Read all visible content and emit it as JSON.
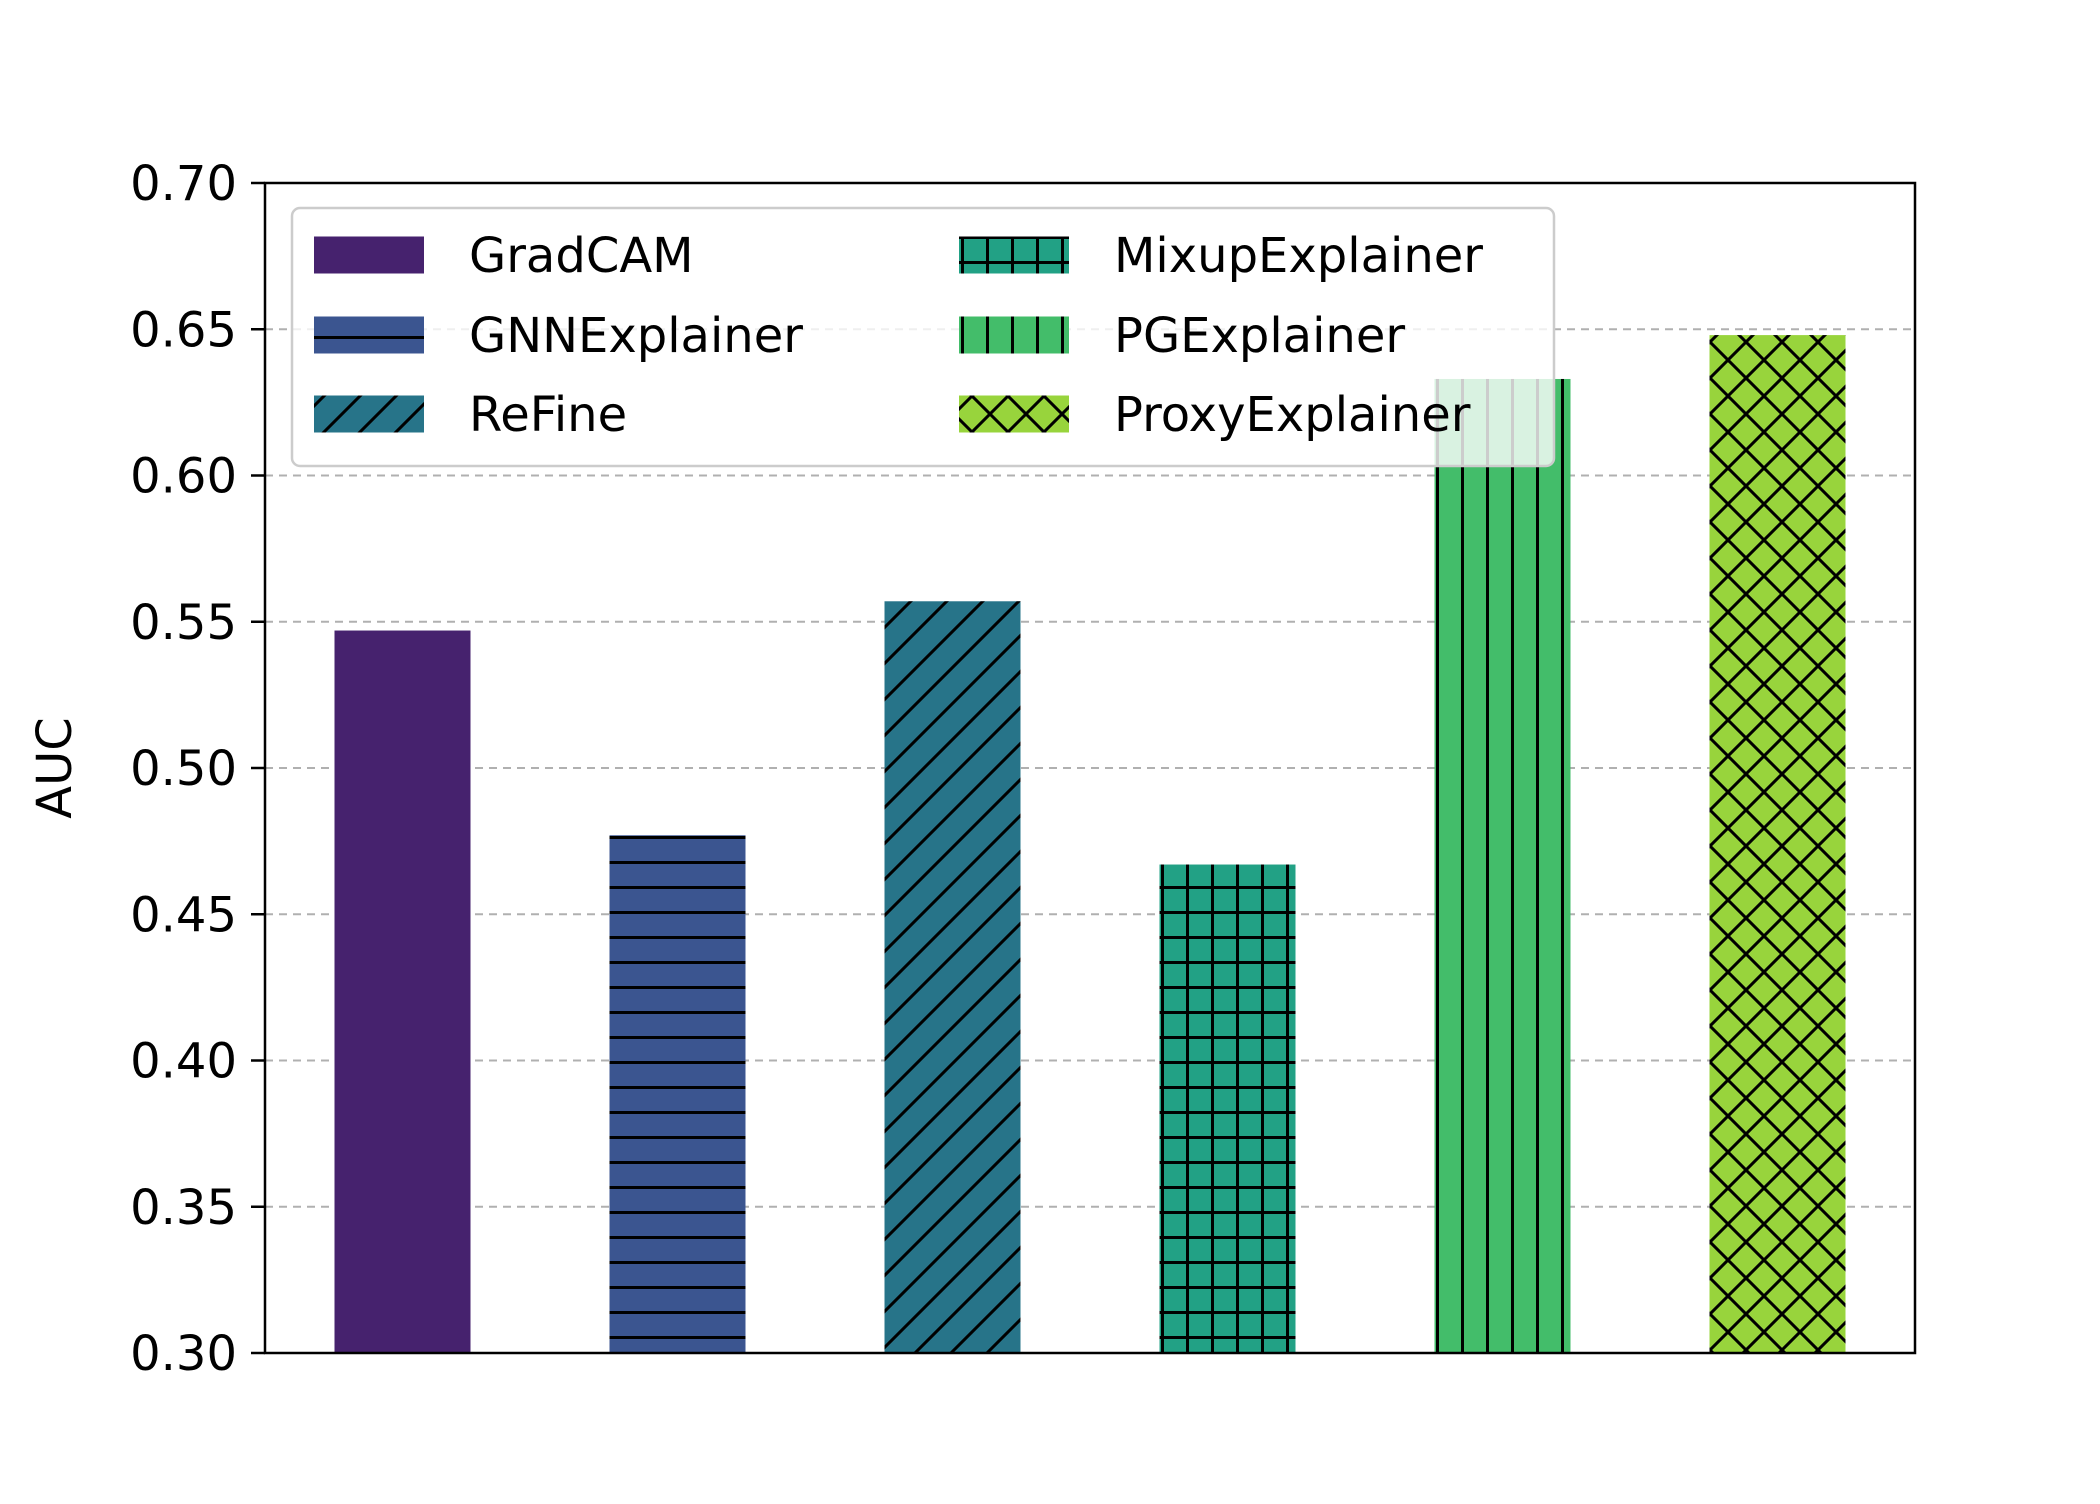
{
  "chart_data": {
    "type": "bar",
    "title": "",
    "xlabel": "",
    "ylabel": "AUC",
    "ylim": [
      0.3,
      0.7
    ],
    "yticks": [
      "0.30",
      "0.35",
      "0.40",
      "0.45",
      "0.50",
      "0.55",
      "0.60",
      "0.65",
      "0.70"
    ],
    "grid": "y-dashed",
    "legend_position": "top-left",
    "legend_columns": 2,
    "series": [
      {
        "name": "GradCAM",
        "value": 0.547,
        "color": "#46226e",
        "hatch": "none"
      },
      {
        "name": "GNNExplainer",
        "value": 0.477,
        "color": "#3b5590",
        "hatch": "horizontal"
      },
      {
        "name": "ReFine",
        "value": 0.557,
        "color": "#277489",
        "hatch": "diagonal"
      },
      {
        "name": "MixupExplainer",
        "value": 0.467,
        "color": "#22a185",
        "hatch": "grid"
      },
      {
        "name": "PGExplainer",
        "value": 0.633,
        "color": "#43bd6a",
        "hatch": "vertical"
      },
      {
        "name": "ProxyExplainer",
        "value": 0.648,
        "color": "#98d43c",
        "hatch": "crosshatch"
      }
    ]
  }
}
